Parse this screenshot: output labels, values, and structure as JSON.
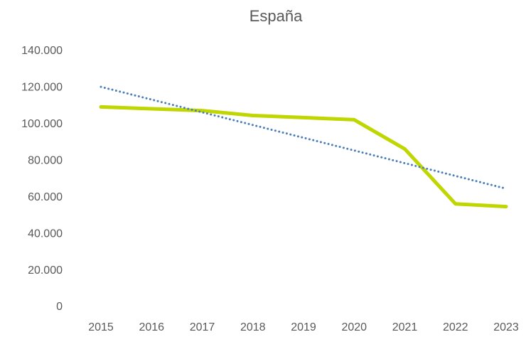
{
  "chart_data": {
    "type": "line",
    "title": "España",
    "categories": [
      "2015",
      "2016",
      "2017",
      "2018",
      "2019",
      "2020",
      "2021",
      "2022",
      "2023"
    ],
    "series": [
      {
        "color": "#bfd600",
        "values": [
          109500,
          108500,
          107500,
          104800,
          103700,
          102500,
          86500,
          56500,
          55000
        ]
      },
      {
        "color": "#4a7ebb",
        "dash": "dotted",
        "values": [
          120500,
          113540,
          106580,
          99620,
          92660,
          85700,
          78740,
          71780,
          64820
        ]
      }
    ],
    "ylim": [
      0,
      140000
    ],
    "yticks": [
      0,
      {
        "value": 20000,
        "label": "20.000"
      },
      {
        "value": 40000,
        "label": "40.000"
      },
      {
        "value": 60000,
        "label": "60.000"
      },
      {
        "value": 80000,
        "label": "80.000"
      },
      {
        "value": 100000,
        "label": "100.000"
      },
      {
        "value": 120000,
        "label": "120.000"
      },
      {
        "value": 140000,
        "label": "140.000"
      }
    ],
    "grid": false
  }
}
